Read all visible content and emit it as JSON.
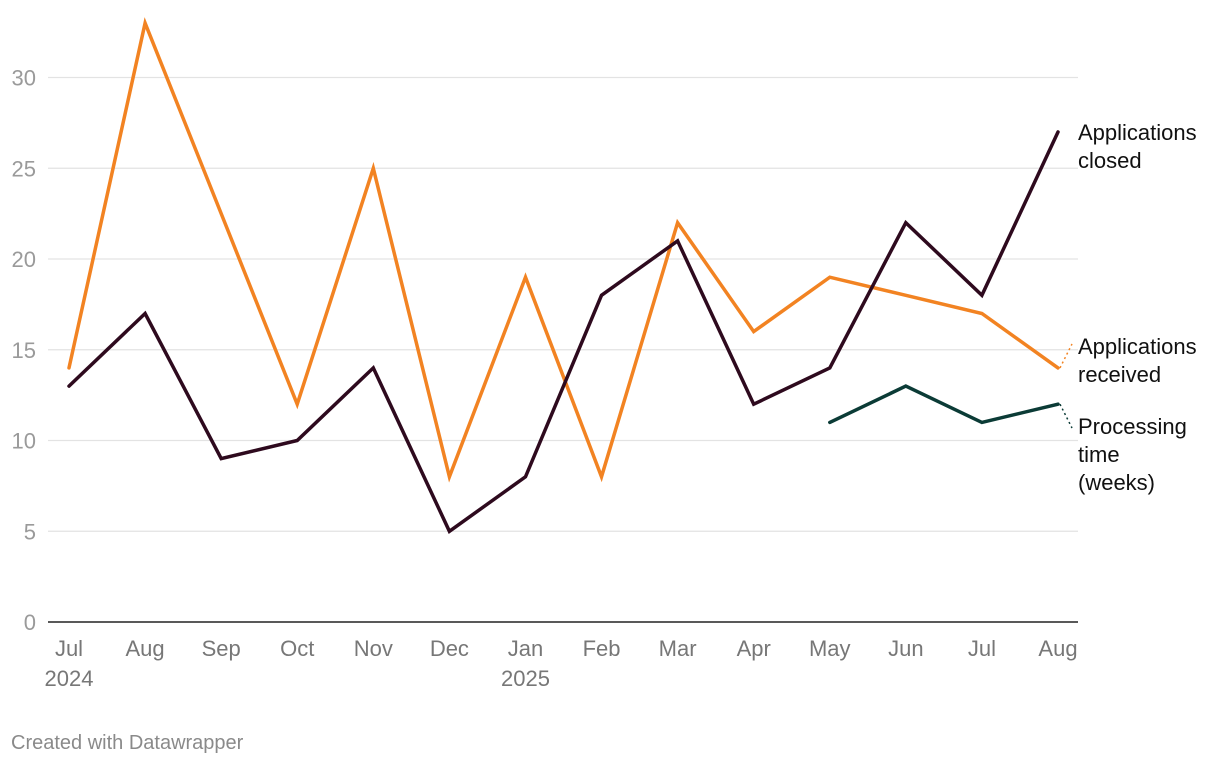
{
  "footer": {
    "credit": "Created with Datawrapper"
  },
  "colors": {
    "applications_received": "#f28322",
    "applications_closed": "#2e0a1e",
    "processing_time": "#0b3b36"
  },
  "chart_data": {
    "type": "line",
    "x": [
      "Jul 2024",
      "Aug 2024",
      "Sep 2024",
      "Oct 2024",
      "Nov 2024",
      "Dec 2024",
      "Jan 2025",
      "Feb 2025",
      "Mar 2025",
      "Apr 2025",
      "May 2025",
      "Jun 2025",
      "Jul 2025",
      "Aug 2025"
    ],
    "tick_labels": [
      {
        "month": "Jul",
        "year": "2024"
      },
      {
        "month": "Aug",
        "year": ""
      },
      {
        "month": "Sep",
        "year": ""
      },
      {
        "month": "Oct",
        "year": ""
      },
      {
        "month": "Nov",
        "year": ""
      },
      {
        "month": "Dec",
        "year": ""
      },
      {
        "month": "Jan",
        "year": "2025"
      },
      {
        "month": "Feb",
        "year": ""
      },
      {
        "month": "Mar",
        "year": ""
      },
      {
        "month": "Apr",
        "year": ""
      },
      {
        "month": "May",
        "year": ""
      },
      {
        "month": "Jun",
        "year": ""
      },
      {
        "month": "Jul",
        "year": ""
      },
      {
        "month": "Aug",
        "year": ""
      }
    ],
    "ylim": [
      0,
      33
    ],
    "yticks": [
      0,
      5,
      10,
      15,
      20,
      25,
      30
    ],
    "grid": true,
    "legend": "direct labels at right end of lines",
    "series": [
      {
        "key": "applications_received",
        "label_lines": [
          "Applications",
          "received"
        ],
        "values": [
          14,
          33,
          22.5,
          12,
          25,
          8,
          19,
          8,
          22,
          16,
          19,
          18,
          17,
          14
        ]
      },
      {
        "key": "applications_closed",
        "label_lines": [
          "Applications",
          "closed"
        ],
        "values": [
          13,
          17,
          9,
          10,
          14,
          5,
          8,
          18,
          21,
          12,
          14,
          22,
          18,
          27
        ]
      },
      {
        "key": "processing_time",
        "label_lines": [
          "Processing",
          "time",
          "(weeks)"
        ],
        "values": [
          null,
          null,
          null,
          null,
          null,
          null,
          null,
          null,
          null,
          null,
          11,
          13,
          11,
          12
        ]
      }
    ]
  }
}
